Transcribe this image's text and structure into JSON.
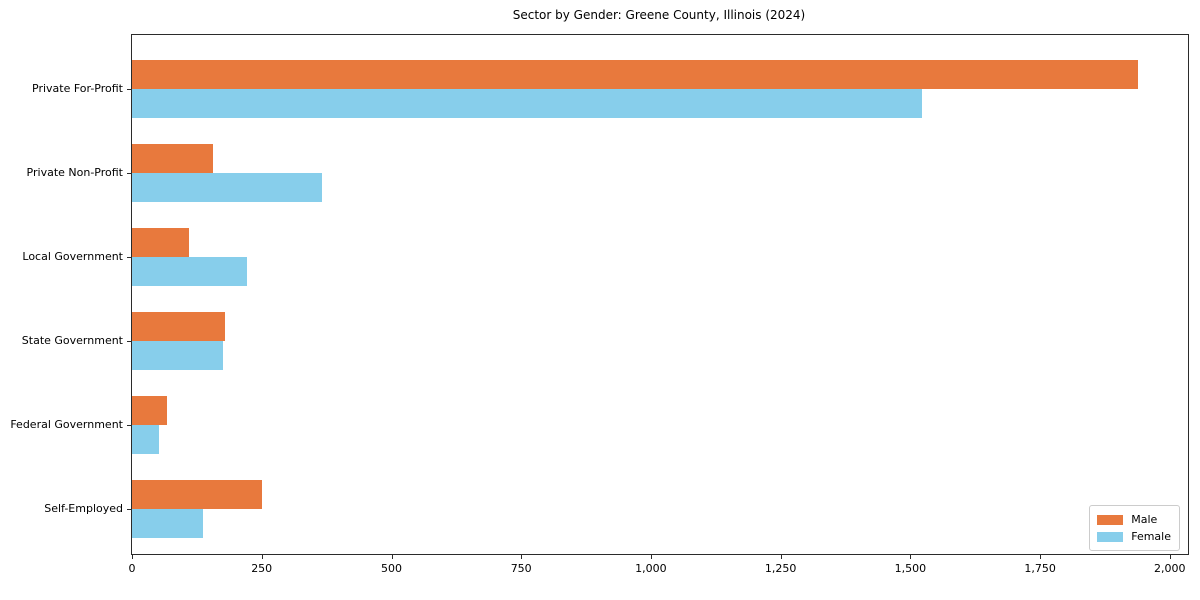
{
  "figure": {
    "background": "#ffffff"
  },
  "chart_data": {
    "type": "bar",
    "orientation": "horizontal",
    "title": "Sector by Gender: Greene County, Illinois (2024)",
    "xlabel": "",
    "ylabel": "",
    "categories": [
      "Private For-Profit",
      "Private Non-Profit",
      "Local Government",
      "State Government",
      "Federal Government",
      "Self-Employed"
    ],
    "series": [
      {
        "name": "Male",
        "color": "#e8793d",
        "values": [
          1938,
          156,
          110,
          179,
          68,
          251
        ]
      },
      {
        "name": "Female",
        "color": "#87ceeb",
        "values": [
          1522,
          366,
          222,
          175,
          52,
          137
        ]
      }
    ],
    "xlim": [
      0,
      2035
    ],
    "x_ticks": [
      0,
      250,
      500,
      750,
      1000,
      1250,
      1500,
      1750,
      2000
    ],
    "x_tick_labels": [
      "0",
      "250",
      "500",
      "750",
      "1,000",
      "1,250",
      "1,500",
      "1,750",
      "2,000"
    ],
    "grid": false,
    "legend_position": "lower right"
  }
}
